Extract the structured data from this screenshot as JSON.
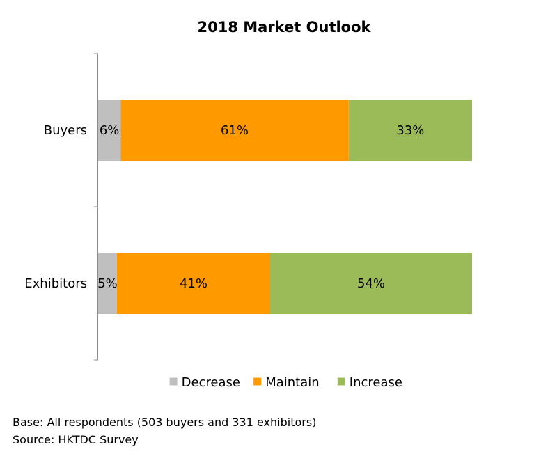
{
  "chart_data": {
    "type": "bar",
    "orientation": "horizontal",
    "stacked": true,
    "title": "2018 Market Outlook",
    "categories": [
      "Buyers",
      "Exhibitors"
    ],
    "series": [
      {
        "name": "Decrease",
        "values": [
          6,
          5
        ],
        "labels": [
          "6%",
          "5%"
        ],
        "color": "#bfbfbf"
      },
      {
        "name": "Maintain",
        "values": [
          61,
          41
        ],
        "labels": [
          "61%",
          "41%"
        ],
        "color": "#ff9900"
      },
      {
        "name": "Increase",
        "values": [
          33,
          54
        ],
        "labels": [
          "33%",
          "54%"
        ],
        "color": "#9bbb59"
      }
    ],
    "xlim": [
      0,
      100
    ],
    "unit": "%",
    "grid": false,
    "legend": "bottom"
  },
  "footer": {
    "base": "Base: All respondents (503 buyers and 331 exhibitors)",
    "source": "Source: HKTDC Survey"
  }
}
